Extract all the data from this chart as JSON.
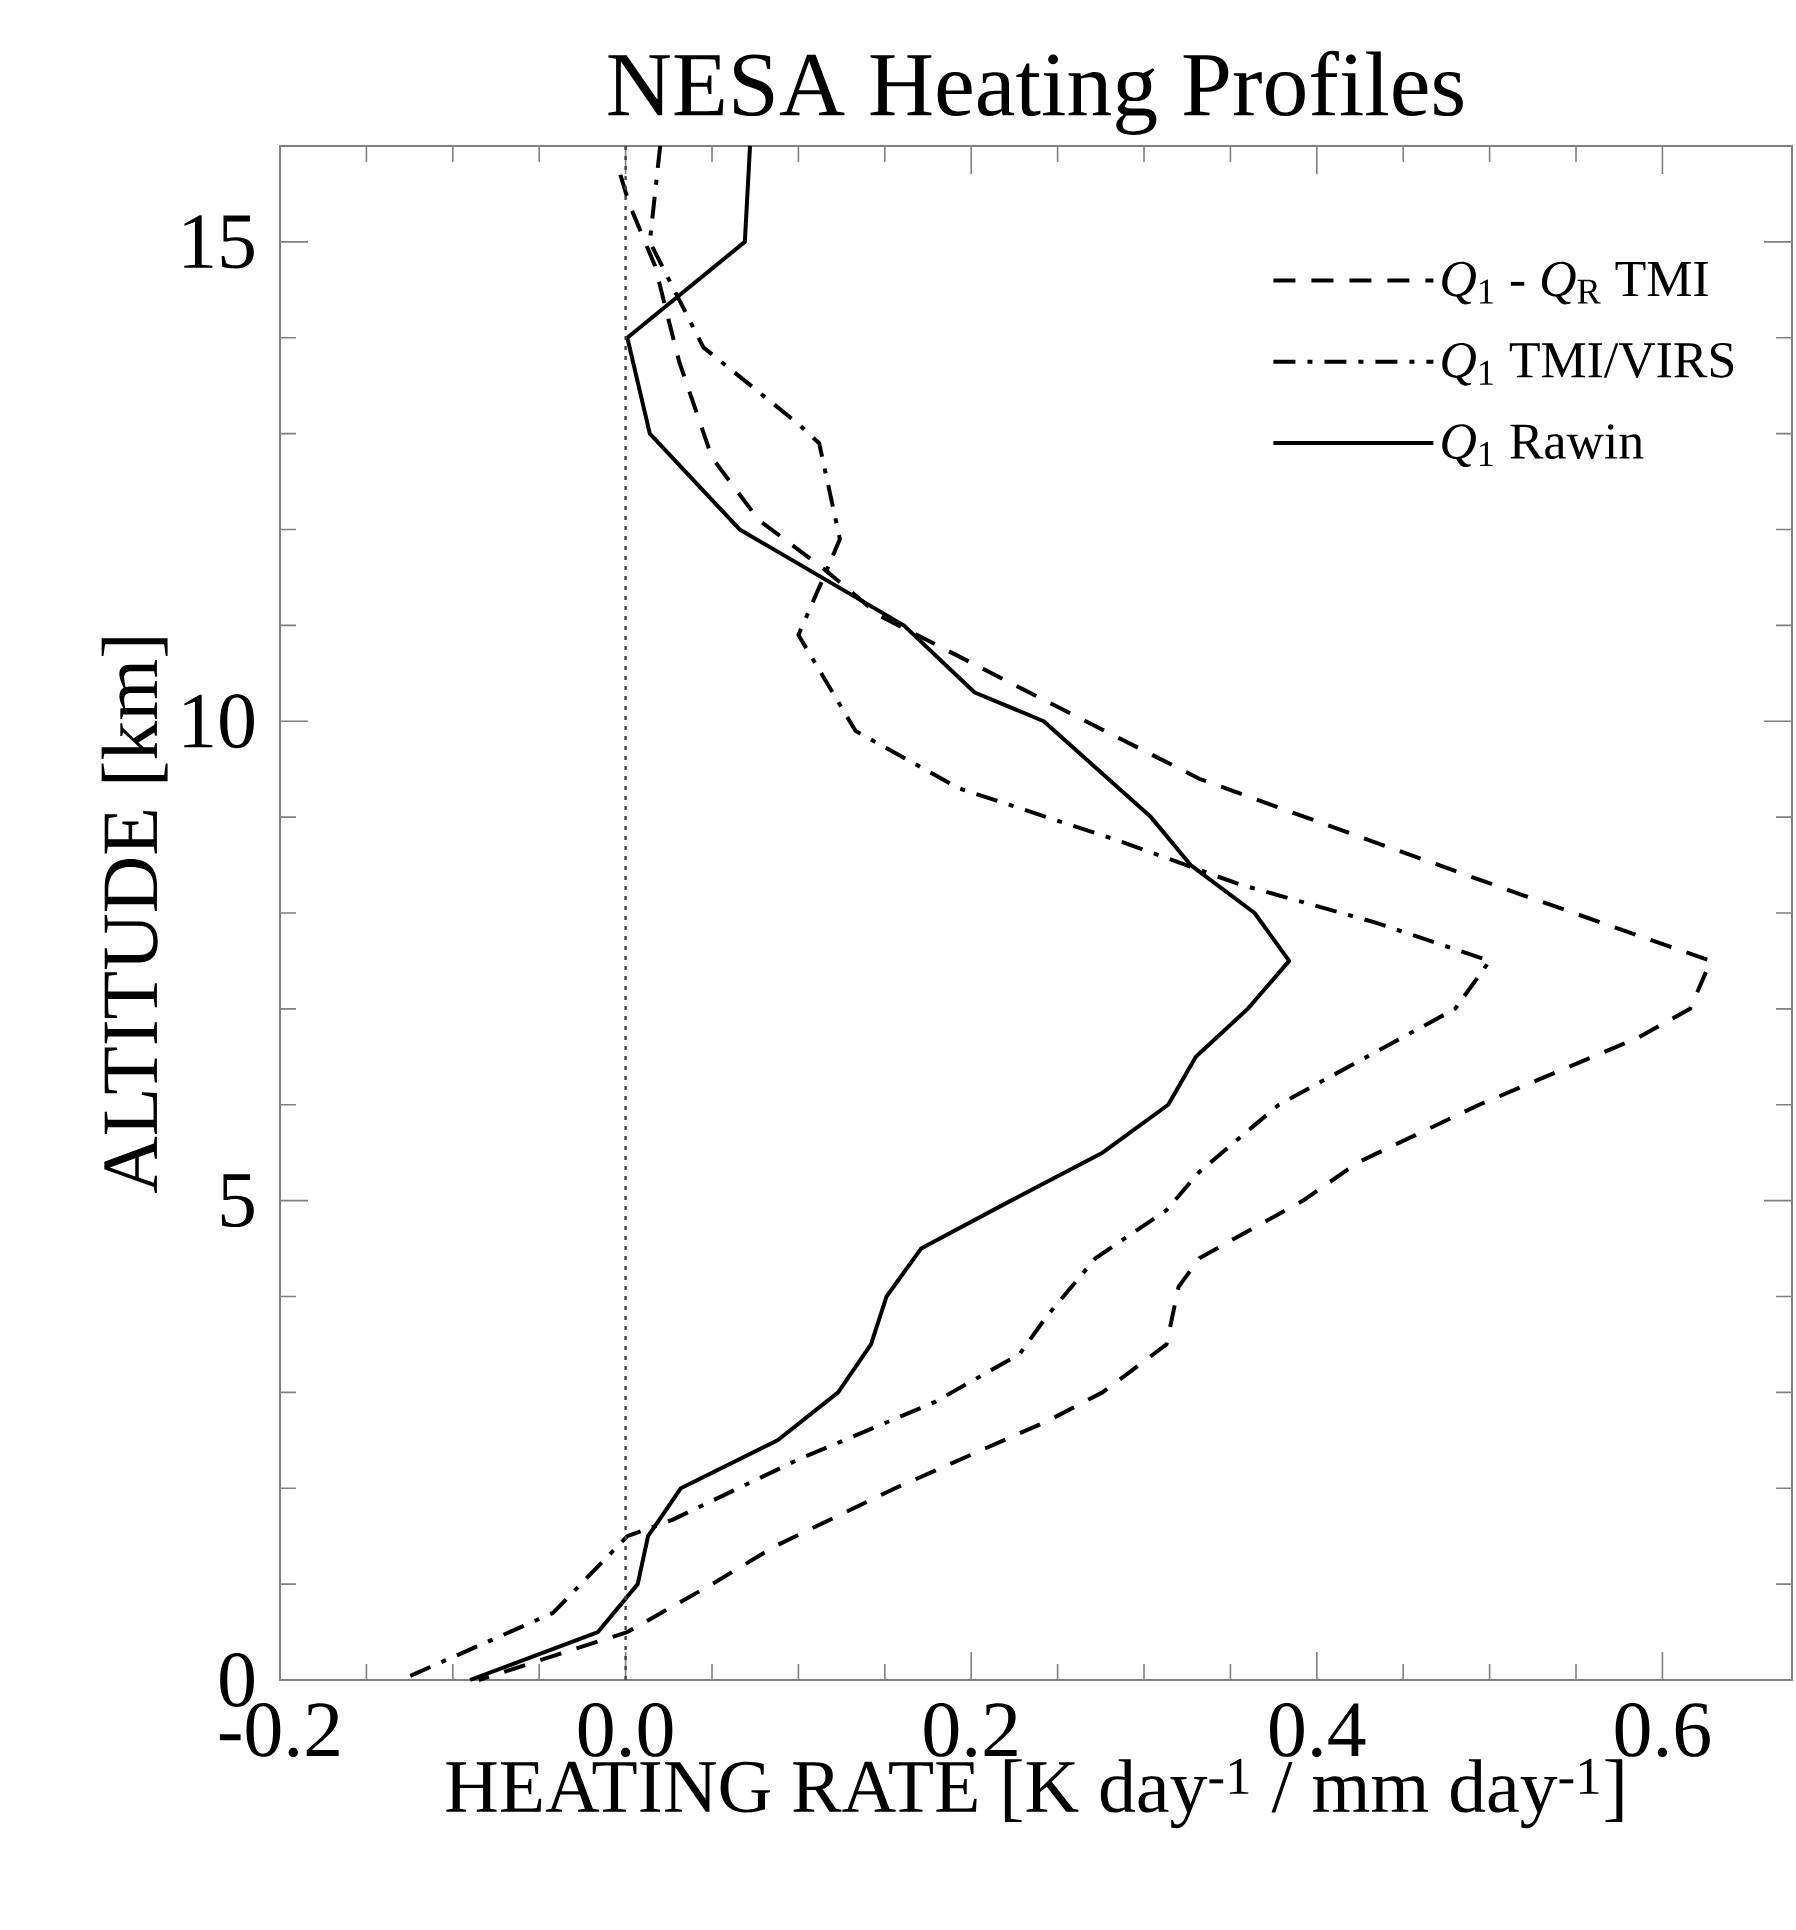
{
  "chart_data": {
    "type": "line",
    "title": "NESA Heating Profiles",
    "xlabel": "HEATING RATE [K day$^{-1}$ / mm day$^{-1}$]",
    "ylabel": "ALTITUDE [km]",
    "xlim": [
      -0.2,
      0.675
    ],
    "ylim": [
      0,
      16
    ],
    "xticks": [
      -0.2,
      {
        "value": 0,
        "label": "0.0"
      },
      0.2,
      0.4,
      0.6
    ],
    "yticks": [
      0,
      5,
      10,
      15
    ],
    "grid": false,
    "legend": "top right",
    "ref_lines": [
      {
        "axis": "x",
        "value": 0,
        "color": "#444444",
        "line_style": "dotted"
      }
    ],
    "series": [
      {
        "name": "*Q*$_{1}$ - *Q*$_{R}$ TMI",
        "color": "#000000",
        "line_style": "dashed",
        "x": [
          -0.003,
          0.002,
          0.017,
          0.031,
          0.05,
          0.077,
          0.114,
          0.147,
          0.239,
          0.332,
          0.424,
          0.517,
          0.628,
          0.616,
          0.586,
          0.494,
          0.424,
          0.392,
          0.332,
          0.32,
          0.313,
          0.276,
          0.244,
          0.156,
          0.087,
          0.05,
          0.001,
          -0.085
        ],
        "values": [
          15.7,
          15.4,
          14.75,
          13.75,
          12.75,
          12.1,
          11.6,
          11.1,
          10.25,
          9.4,
          8.8,
          8.2,
          7.5,
          7.0,
          6.7,
          6.0,
          5.4,
          5.0,
          4.4,
          4.1,
          3.5,
          3.0,
          2.7,
          2.0,
          1.4,
          1.0,
          0.5,
          0
        ]
      },
      {
        "name": "*Q*$_{1}$ TMI/VIRS",
        "color": "#000000",
        "line_style": "dashdot",
        "x": [
          0.02,
          0.014,
          0.045,
          0.1,
          0.112,
          0.124,
          0.117,
          0.1,
          0.133,
          0.193,
          0.286,
          0.355,
          0.434,
          0.5,
          0.48,
          0.378,
          0.332,
          0.313,
          0.272,
          0.244,
          0.228,
          0.179,
          0.1,
          0.027,
          0.001,
          -0.042,
          -0.13
        ],
        "values": [
          16,
          15,
          13.9,
          13.1,
          12.9,
          11.9,
          11.6,
          10.9,
          9.9,
          9.3,
          8.75,
          8.3,
          7.9,
          7.5,
          7.0,
          6.0,
          5.3,
          4.9,
          4.4,
          3.8,
          3.4,
          2.9,
          2.3,
          1.67,
          1.5,
          0.7,
          0
        ]
      },
      {
        "name": "*Q*$_{1}$ Rawin",
        "color": "#000000",
        "line_style": "solid",
        "x": [
          0.072,
          0.069,
          0.001,
          0.014,
          0.066,
          0.161,
          0.202,
          0.242,
          0.304,
          0.327,
          0.364,
          0.384,
          0.36,
          0.33,
          0.314,
          0.276,
          0.223,
          0.171,
          0.151,
          0.142,
          0.123,
          0.088,
          0.032,
          0.013,
          0.007,
          -0.016,
          -0.09
        ],
        "values": [
          16,
          15,
          14,
          13,
          12,
          11,
          10.3,
          10,
          9,
          8.5,
          8,
          7.5,
          7,
          6.5,
          6,
          5.5,
          5,
          4.5,
          4,
          3.5,
          3,
          2.5,
          2,
          1.5,
          1,
          0.5,
          0
        ]
      }
    ]
  }
}
